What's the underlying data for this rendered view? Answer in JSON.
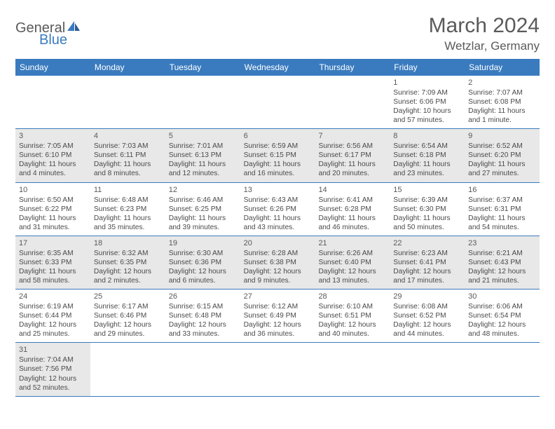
{
  "logo": {
    "text1": "General",
    "text2": "Blue"
  },
  "title": "March 2024",
  "location": "Wetzlar, Germany",
  "colors": {
    "header_bg": "#3a7bbf",
    "header_text": "#ffffff",
    "shade_bg": "#e8e8e8",
    "border": "#3a7bbf",
    "text": "#4a4a4a",
    "title_text": "#5a5a5a"
  },
  "weekdays": [
    "Sunday",
    "Monday",
    "Tuesday",
    "Wednesday",
    "Thursday",
    "Friday",
    "Saturday"
  ],
  "weeks": [
    [
      null,
      null,
      null,
      null,
      null,
      {
        "n": "1",
        "sr": "Sunrise: 7:09 AM",
        "ss": "Sunset: 6:06 PM",
        "dl1": "Daylight: 10 hours",
        "dl2": "and 57 minutes."
      },
      {
        "n": "2",
        "sr": "Sunrise: 7:07 AM",
        "ss": "Sunset: 6:08 PM",
        "dl1": "Daylight: 11 hours",
        "dl2": "and 1 minute."
      }
    ],
    [
      {
        "n": "3",
        "sr": "Sunrise: 7:05 AM",
        "ss": "Sunset: 6:10 PM",
        "dl1": "Daylight: 11 hours",
        "dl2": "and 4 minutes."
      },
      {
        "n": "4",
        "sr": "Sunrise: 7:03 AM",
        "ss": "Sunset: 6:11 PM",
        "dl1": "Daylight: 11 hours",
        "dl2": "and 8 minutes."
      },
      {
        "n": "5",
        "sr": "Sunrise: 7:01 AM",
        "ss": "Sunset: 6:13 PM",
        "dl1": "Daylight: 11 hours",
        "dl2": "and 12 minutes."
      },
      {
        "n": "6",
        "sr": "Sunrise: 6:59 AM",
        "ss": "Sunset: 6:15 PM",
        "dl1": "Daylight: 11 hours",
        "dl2": "and 16 minutes."
      },
      {
        "n": "7",
        "sr": "Sunrise: 6:56 AM",
        "ss": "Sunset: 6:17 PM",
        "dl1": "Daylight: 11 hours",
        "dl2": "and 20 minutes."
      },
      {
        "n": "8",
        "sr": "Sunrise: 6:54 AM",
        "ss": "Sunset: 6:18 PM",
        "dl1": "Daylight: 11 hours",
        "dl2": "and 23 minutes."
      },
      {
        "n": "9",
        "sr": "Sunrise: 6:52 AM",
        "ss": "Sunset: 6:20 PM",
        "dl1": "Daylight: 11 hours",
        "dl2": "and 27 minutes."
      }
    ],
    [
      {
        "n": "10",
        "sr": "Sunrise: 6:50 AM",
        "ss": "Sunset: 6:22 PM",
        "dl1": "Daylight: 11 hours",
        "dl2": "and 31 minutes."
      },
      {
        "n": "11",
        "sr": "Sunrise: 6:48 AM",
        "ss": "Sunset: 6:23 PM",
        "dl1": "Daylight: 11 hours",
        "dl2": "and 35 minutes."
      },
      {
        "n": "12",
        "sr": "Sunrise: 6:46 AM",
        "ss": "Sunset: 6:25 PM",
        "dl1": "Daylight: 11 hours",
        "dl2": "and 39 minutes."
      },
      {
        "n": "13",
        "sr": "Sunrise: 6:43 AM",
        "ss": "Sunset: 6:26 PM",
        "dl1": "Daylight: 11 hours",
        "dl2": "and 43 minutes."
      },
      {
        "n": "14",
        "sr": "Sunrise: 6:41 AM",
        "ss": "Sunset: 6:28 PM",
        "dl1": "Daylight: 11 hours",
        "dl2": "and 46 minutes."
      },
      {
        "n": "15",
        "sr": "Sunrise: 6:39 AM",
        "ss": "Sunset: 6:30 PM",
        "dl1": "Daylight: 11 hours",
        "dl2": "and 50 minutes."
      },
      {
        "n": "16",
        "sr": "Sunrise: 6:37 AM",
        "ss": "Sunset: 6:31 PM",
        "dl1": "Daylight: 11 hours",
        "dl2": "and 54 minutes."
      }
    ],
    [
      {
        "n": "17",
        "sr": "Sunrise: 6:35 AM",
        "ss": "Sunset: 6:33 PM",
        "dl1": "Daylight: 11 hours",
        "dl2": "and 58 minutes."
      },
      {
        "n": "18",
        "sr": "Sunrise: 6:32 AM",
        "ss": "Sunset: 6:35 PM",
        "dl1": "Daylight: 12 hours",
        "dl2": "and 2 minutes."
      },
      {
        "n": "19",
        "sr": "Sunrise: 6:30 AM",
        "ss": "Sunset: 6:36 PM",
        "dl1": "Daylight: 12 hours",
        "dl2": "and 6 minutes."
      },
      {
        "n": "20",
        "sr": "Sunrise: 6:28 AM",
        "ss": "Sunset: 6:38 PM",
        "dl1": "Daylight: 12 hours",
        "dl2": "and 9 minutes."
      },
      {
        "n": "21",
        "sr": "Sunrise: 6:26 AM",
        "ss": "Sunset: 6:40 PM",
        "dl1": "Daylight: 12 hours",
        "dl2": "and 13 minutes."
      },
      {
        "n": "22",
        "sr": "Sunrise: 6:23 AM",
        "ss": "Sunset: 6:41 PM",
        "dl1": "Daylight: 12 hours",
        "dl2": "and 17 minutes."
      },
      {
        "n": "23",
        "sr": "Sunrise: 6:21 AM",
        "ss": "Sunset: 6:43 PM",
        "dl1": "Daylight: 12 hours",
        "dl2": "and 21 minutes."
      }
    ],
    [
      {
        "n": "24",
        "sr": "Sunrise: 6:19 AM",
        "ss": "Sunset: 6:44 PM",
        "dl1": "Daylight: 12 hours",
        "dl2": "and 25 minutes."
      },
      {
        "n": "25",
        "sr": "Sunrise: 6:17 AM",
        "ss": "Sunset: 6:46 PM",
        "dl1": "Daylight: 12 hours",
        "dl2": "and 29 minutes."
      },
      {
        "n": "26",
        "sr": "Sunrise: 6:15 AM",
        "ss": "Sunset: 6:48 PM",
        "dl1": "Daylight: 12 hours",
        "dl2": "and 33 minutes."
      },
      {
        "n": "27",
        "sr": "Sunrise: 6:12 AM",
        "ss": "Sunset: 6:49 PM",
        "dl1": "Daylight: 12 hours",
        "dl2": "and 36 minutes."
      },
      {
        "n": "28",
        "sr": "Sunrise: 6:10 AM",
        "ss": "Sunset: 6:51 PM",
        "dl1": "Daylight: 12 hours",
        "dl2": "and 40 minutes."
      },
      {
        "n": "29",
        "sr": "Sunrise: 6:08 AM",
        "ss": "Sunset: 6:52 PM",
        "dl1": "Daylight: 12 hours",
        "dl2": "and 44 minutes."
      },
      {
        "n": "30",
        "sr": "Sunrise: 6:06 AM",
        "ss": "Sunset: 6:54 PM",
        "dl1": "Daylight: 12 hours",
        "dl2": "and 48 minutes."
      }
    ],
    [
      {
        "n": "31",
        "sr": "Sunrise: 7:04 AM",
        "ss": "Sunset: 7:56 PM",
        "dl1": "Daylight: 12 hours",
        "dl2": "and 52 minutes."
      },
      null,
      null,
      null,
      null,
      null,
      null
    ]
  ]
}
